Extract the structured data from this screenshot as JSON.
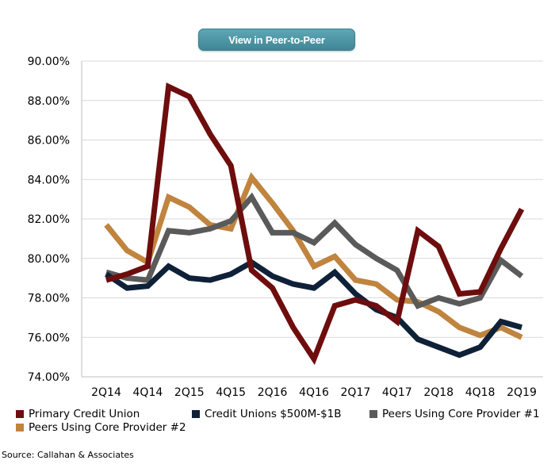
{
  "header": {
    "button_label": "View in Peer-to-Peer"
  },
  "source": "Source: Callahan & Associates",
  "chart_data": {
    "type": "line",
    "title": "",
    "xlabel": "",
    "ylabel": "",
    "ylim": [
      74,
      90
    ],
    "yticks": [
      74,
      76,
      78,
      80,
      82,
      84,
      86,
      88,
      90
    ],
    "ytick_labels": [
      "74.00%",
      "76.00%",
      "78.00%",
      "80.00%",
      "82.00%",
      "84.00%",
      "86.00%",
      "88.00%",
      "90.00%"
    ],
    "x": [
      "2Q14",
      "3Q14",
      "4Q14",
      "1Q15",
      "2Q15",
      "3Q15",
      "4Q15",
      "1Q16",
      "2Q16",
      "3Q16",
      "4Q16",
      "1Q17",
      "2Q17",
      "3Q17",
      "4Q17",
      "1Q18",
      "2Q18",
      "3Q18",
      "4Q18",
      "1Q19",
      "2Q19"
    ],
    "xtick_labels": [
      "2Q14",
      "4Q14",
      "2Q15",
      "4Q15",
      "2Q16",
      "4Q16",
      "2Q17",
      "4Q17",
      "2Q18",
      "4Q18",
      "2Q19"
    ],
    "grid": true,
    "legend_position": "bottom",
    "series": [
      {
        "name": "Primary Credit Union",
        "color": "#6e0d0d",
        "values": [
          78.9,
          79.2,
          79.6,
          88.7,
          88.2,
          86.3,
          84.7,
          79.4,
          78.5,
          76.5,
          74.9,
          77.6,
          77.9,
          77.6,
          76.8,
          81.4,
          80.6,
          78.2,
          78.3,
          80.5,
          82.5
        ]
      },
      {
        "name": "Credit Unions $500M-$1B",
        "color": "#0f2138",
        "values": [
          79.2,
          78.5,
          78.6,
          79.6,
          79.0,
          78.9,
          79.2,
          79.8,
          79.1,
          78.7,
          78.5,
          79.3,
          78.2,
          77.4,
          77.0,
          75.9,
          75.5,
          75.1,
          75.5,
          76.8,
          76.5
        ]
      },
      {
        "name": "Peers Using Core Provider #1",
        "color": "#5a5a5a",
        "values": [
          79.3,
          79.0,
          78.9,
          81.4,
          81.3,
          81.5,
          81.9,
          83.1,
          81.3,
          81.3,
          80.8,
          81.8,
          80.7,
          80.0,
          79.4,
          77.6,
          78.0,
          77.7,
          78.0,
          79.9,
          79.1
        ]
      },
      {
        "name": "Peers Using Core Provider #2",
        "color": "#c0843e",
        "values": [
          81.7,
          80.4,
          79.8,
          83.1,
          82.6,
          81.7,
          81.5,
          84.1,
          82.8,
          81.4,
          79.6,
          80.1,
          78.9,
          78.7,
          77.9,
          77.8,
          77.3,
          76.5,
          76.1,
          76.5,
          76.0
        ]
      }
    ],
    "draw_order": [
      3,
      2,
      1,
      0
    ]
  }
}
